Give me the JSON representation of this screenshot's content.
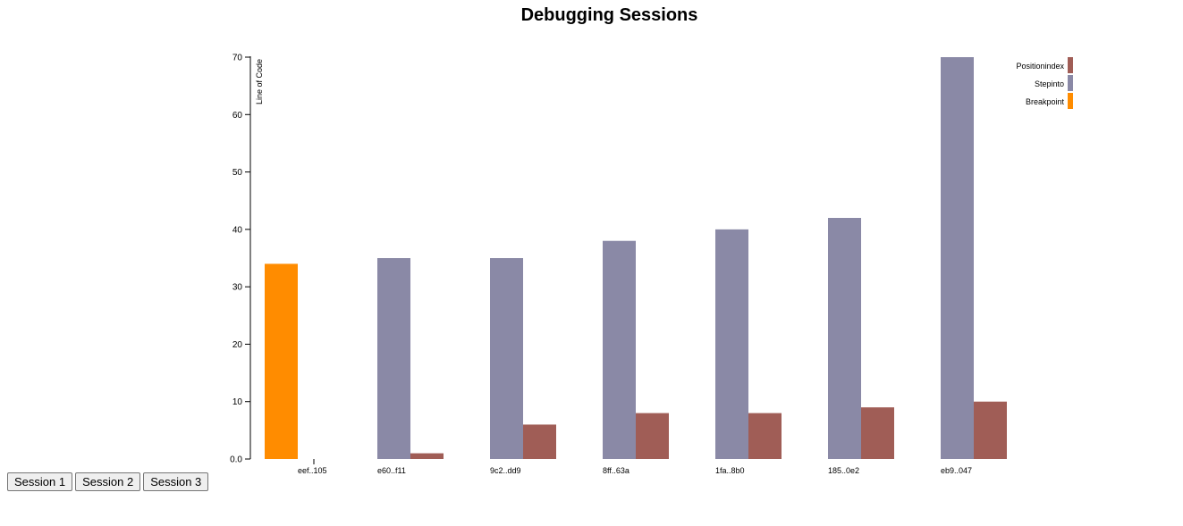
{
  "chart_data": {
    "type": "bar",
    "title": "Debugging Sessions",
    "ylabel": "Line of Code",
    "xlabel": "",
    "ylim": [
      0,
      70
    ],
    "yticks": [
      "0.0",
      "10",
      "20",
      "30",
      "40",
      "50",
      "60",
      "70"
    ],
    "categories": [
      "eef..105",
      "e60..f11",
      "9c2..dd9",
      "8ff..63a",
      "1fa..8b0",
      "185..0e2",
      "eb9..047"
    ],
    "series": [
      {
        "name": "Breakpoint",
        "color": "#ff8c00",
        "values": [
          34,
          null,
          null,
          null,
          null,
          null,
          null
        ]
      },
      {
        "name": "Stepinto",
        "color": "#8a89a6",
        "values": [
          null,
          35,
          35,
          38,
          40,
          42,
          70
        ]
      },
      {
        "name": "Positionindex",
        "color": "#a05d56",
        "values": [
          null,
          1,
          6,
          8,
          8,
          9,
          10
        ]
      }
    ],
    "legend_order": [
      "Positionindex",
      "Stepinto",
      "Breakpoint"
    ],
    "legend_position": "top-right",
    "grid": false
  },
  "controls": {
    "buttons": [
      "Session 1",
      "Session 2",
      "Session 3"
    ]
  }
}
